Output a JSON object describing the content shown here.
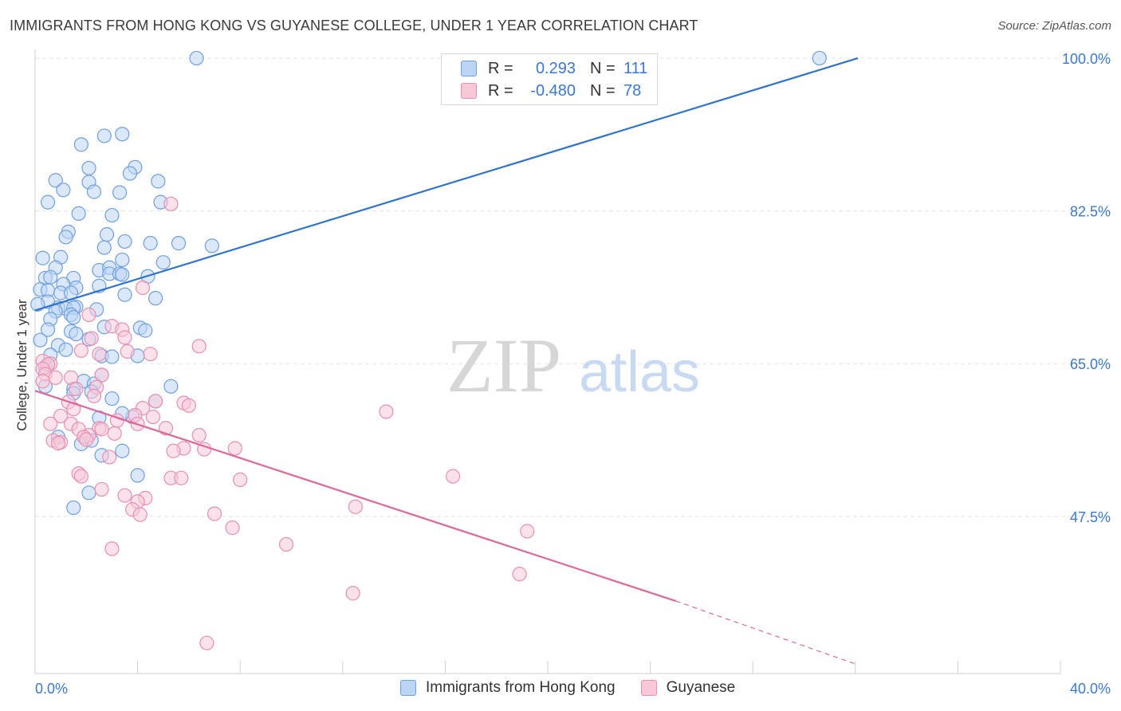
{
  "title": "IMMIGRANTS FROM HONG KONG VS GUYANESE COLLEGE, UNDER 1 YEAR CORRELATION CHART",
  "source": "Source: ZipAtlas.com",
  "watermark": {
    "zip": "ZIP",
    "atlas": "atlas"
  },
  "legend": {
    "r_label": "R =",
    "n_label": "N =",
    "series1": {
      "r": "0.293",
      "n": "111"
    },
    "series2": {
      "r": "-0.480",
      "n": "78"
    }
  },
  "bottom_legend": {
    "series1": "Immigrants from Hong Kong",
    "series2": "Guyanese"
  },
  "colors": {
    "blue_fill": "#bdd5f5",
    "blue_stroke": "#6f9fe0",
    "blue_line": "#2f72d0",
    "pink_fill": "#f8c8d8",
    "pink_stroke": "#ea8fb0",
    "pink_line": "#e0679a",
    "tick_label": "#3b78d4",
    "grid": "#e3e3e3"
  },
  "chart_data": {
    "type": "scatter",
    "title": "IMMIGRANTS FROM HONG KONG VS GUYANESE COLLEGE, UNDER 1 YEAR CORRELATION CHART",
    "xlabel": "",
    "ylabel": "College, Under 1 year",
    "xlim": [
      0,
      40
    ],
    "ylim": [
      29.5,
      101
    ],
    "x_tick_labels": [
      "0.0%",
      "40.0%"
    ],
    "y_ticks": [
      100.0,
      82.5,
      65.0,
      47.5
    ],
    "y_tick_labels": [
      "100.0%",
      "82.5%",
      "65.0%",
      "47.5%"
    ],
    "grid": true,
    "legend_position": "top-center",
    "series": [
      {
        "name": "Immigrants from Hong Kong",
        "color": "#6f9fe0",
        "trend": {
          "x": [
            0,
            32.1
          ],
          "y": [
            71.1,
            100.0
          ]
        },
        "points": [
          [
            6.3,
            100.0
          ],
          [
            30.6,
            100.0
          ],
          [
            3.4,
            91.3
          ],
          [
            2.7,
            91.1
          ],
          [
            1.8,
            90.1
          ],
          [
            3.9,
            87.5
          ],
          [
            2.1,
            87.4
          ],
          [
            3.7,
            86.8
          ],
          [
            0.8,
            86.0
          ],
          [
            4.8,
            85.9
          ],
          [
            2.1,
            85.8
          ],
          [
            1.1,
            84.9
          ],
          [
            3.3,
            84.6
          ],
          [
            2.3,
            84.7
          ],
          [
            0.5,
            83.5
          ],
          [
            4.9,
            83.5
          ],
          [
            1.7,
            82.2
          ],
          [
            3.0,
            82.0
          ],
          [
            1.3,
            80.1
          ],
          [
            2.8,
            79.8
          ],
          [
            1.2,
            79.5
          ],
          [
            3.5,
            79.0
          ],
          [
            5.6,
            78.8
          ],
          [
            4.5,
            78.8
          ],
          [
            6.9,
            78.5
          ],
          [
            2.7,
            78.3
          ],
          [
            0.3,
            77.1
          ],
          [
            1.0,
            77.2
          ],
          [
            3.4,
            76.9
          ],
          [
            5.0,
            76.6
          ],
          [
            0.8,
            76.0
          ],
          [
            2.5,
            75.7
          ],
          [
            2.9,
            76.0
          ],
          [
            2.9,
            75.3
          ],
          [
            0.4,
            74.8
          ],
          [
            3.3,
            75.3
          ],
          [
            1.5,
            74.8
          ],
          [
            0.6,
            74.9
          ],
          [
            4.4,
            75.0
          ],
          [
            1.1,
            74.1
          ],
          [
            1.6,
            73.7
          ],
          [
            2.5,
            73.9
          ],
          [
            3.4,
            75.2
          ],
          [
            0.2,
            73.5
          ],
          [
            0.5,
            73.4
          ],
          [
            1.0,
            73.1
          ],
          [
            1.4,
            73.1
          ],
          [
            3.5,
            72.9
          ],
          [
            4.7,
            72.5
          ],
          [
            0.5,
            72.1
          ],
          [
            0.1,
            71.8
          ],
          [
            1.6,
            71.5
          ],
          [
            0.9,
            71.4
          ],
          [
            1.2,
            71.3
          ],
          [
            1.5,
            71.4
          ],
          [
            2.4,
            71.2
          ],
          [
            0.8,
            71.0
          ],
          [
            1.4,
            70.6
          ],
          [
            1.5,
            70.3
          ],
          [
            0.6,
            70.1
          ],
          [
            2.7,
            69.2
          ],
          [
            0.5,
            68.9
          ],
          [
            4.1,
            69.1
          ],
          [
            1.4,
            68.7
          ],
          [
            1.6,
            68.4
          ],
          [
            4.3,
            68.8
          ],
          [
            2.1,
            67.8
          ],
          [
            0.2,
            67.7
          ],
          [
            0.9,
            67.1
          ],
          [
            1.2,
            66.6
          ],
          [
            0.6,
            66.0
          ],
          [
            2.6,
            65.9
          ],
          [
            3.0,
            65.8
          ],
          [
            0.4,
            64.6
          ],
          [
            4.0,
            65.9
          ],
          [
            2.6,
            63.7
          ],
          [
            1.9,
            63.0
          ],
          [
            2.3,
            62.7
          ],
          [
            1.5,
            62.1
          ],
          [
            1.5,
            61.6
          ],
          [
            5.3,
            62.4
          ],
          [
            0.4,
            62.4
          ],
          [
            2.2,
            61.8
          ],
          [
            3.0,
            61.0
          ],
          [
            4.7,
            60.7
          ],
          [
            2.5,
            58.8
          ],
          [
            3.8,
            58.9
          ],
          [
            3.4,
            59.3
          ],
          [
            0.9,
            56.6
          ],
          [
            2.2,
            56.2
          ],
          [
            2.6,
            54.5
          ],
          [
            3.4,
            55.0
          ],
          [
            1.8,
            55.8
          ],
          [
            4.0,
            52.2
          ],
          [
            2.1,
            50.2
          ],
          [
            1.5,
            48.5
          ]
        ]
      },
      {
        "name": "Guyanese",
        "color": "#ea8fb0",
        "trend": {
          "x": [
            0,
            25.0
          ],
          "y": [
            61.9,
            37.8
          ],
          "dashed_to": {
            "x": 32.1,
            "y": 30.5
          }
        },
        "points": [
          [
            5.3,
            83.3
          ],
          [
            4.2,
            73.7
          ],
          [
            2.1,
            70.6
          ],
          [
            3.0,
            69.3
          ],
          [
            3.4,
            68.9
          ],
          [
            3.5,
            68.0
          ],
          [
            2.2,
            67.9
          ],
          [
            6.4,
            67.0
          ],
          [
            1.8,
            66.5
          ],
          [
            3.6,
            66.4
          ],
          [
            2.5,
            66.1
          ],
          [
            4.5,
            66.1
          ],
          [
            0.3,
            65.3
          ],
          [
            0.6,
            65.0
          ],
          [
            0.5,
            64.9
          ],
          [
            0.3,
            64.4
          ],
          [
            0.4,
            63.8
          ],
          [
            0.8,
            63.4
          ],
          [
            1.4,
            63.4
          ],
          [
            2.6,
            63.7
          ],
          [
            0.3,
            63.0
          ],
          [
            1.6,
            62.1
          ],
          [
            2.4,
            62.3
          ],
          [
            2.3,
            61.3
          ],
          [
            4.7,
            60.7
          ],
          [
            1.3,
            60.6
          ],
          [
            5.8,
            60.5
          ],
          [
            6.0,
            60.2
          ],
          [
            4.2,
            59.9
          ],
          [
            1.5,
            59.8
          ],
          [
            13.7,
            59.5
          ],
          [
            3.9,
            59.1
          ],
          [
            1.0,
            59.0
          ],
          [
            4.6,
            58.9
          ],
          [
            3.2,
            58.5
          ],
          [
            1.4,
            58.1
          ],
          [
            4.0,
            58.1
          ],
          [
            0.6,
            58.1
          ],
          [
            5.1,
            57.6
          ],
          [
            2.5,
            57.6
          ],
          [
            1.7,
            57.5
          ],
          [
            3.1,
            57.0
          ],
          [
            2.6,
            57.5
          ],
          [
            6.4,
            56.8
          ],
          [
            2.1,
            56.8
          ],
          [
            1.9,
            56.6
          ],
          [
            2.0,
            56.3
          ],
          [
            0.7,
            56.2
          ],
          [
            1.0,
            56.0
          ],
          [
            0.9,
            55.9
          ],
          [
            5.8,
            55.3
          ],
          [
            6.6,
            55.2
          ],
          [
            7.8,
            55.3
          ],
          [
            5.4,
            55.0
          ],
          [
            2.9,
            54.3
          ],
          [
            1.7,
            52.4
          ],
          [
            1.8,
            52.1
          ],
          [
            5.3,
            51.9
          ],
          [
            5.7,
            51.9
          ],
          [
            8.0,
            51.7
          ],
          [
            16.3,
            52.1
          ],
          [
            2.6,
            50.6
          ],
          [
            3.5,
            49.9
          ],
          [
            4.3,
            49.6
          ],
          [
            4.0,
            49.2
          ],
          [
            12.5,
            48.6
          ],
          [
            3.8,
            48.3
          ],
          [
            4.1,
            47.7
          ],
          [
            7.0,
            47.8
          ],
          [
            7.7,
            46.2
          ],
          [
            19.2,
            45.8
          ],
          [
            9.8,
            44.3
          ],
          [
            3.0,
            43.8
          ],
          [
            18.9,
            40.9
          ],
          [
            12.4,
            38.7
          ],
          [
            6.7,
            33.0
          ]
        ]
      }
    ]
  }
}
